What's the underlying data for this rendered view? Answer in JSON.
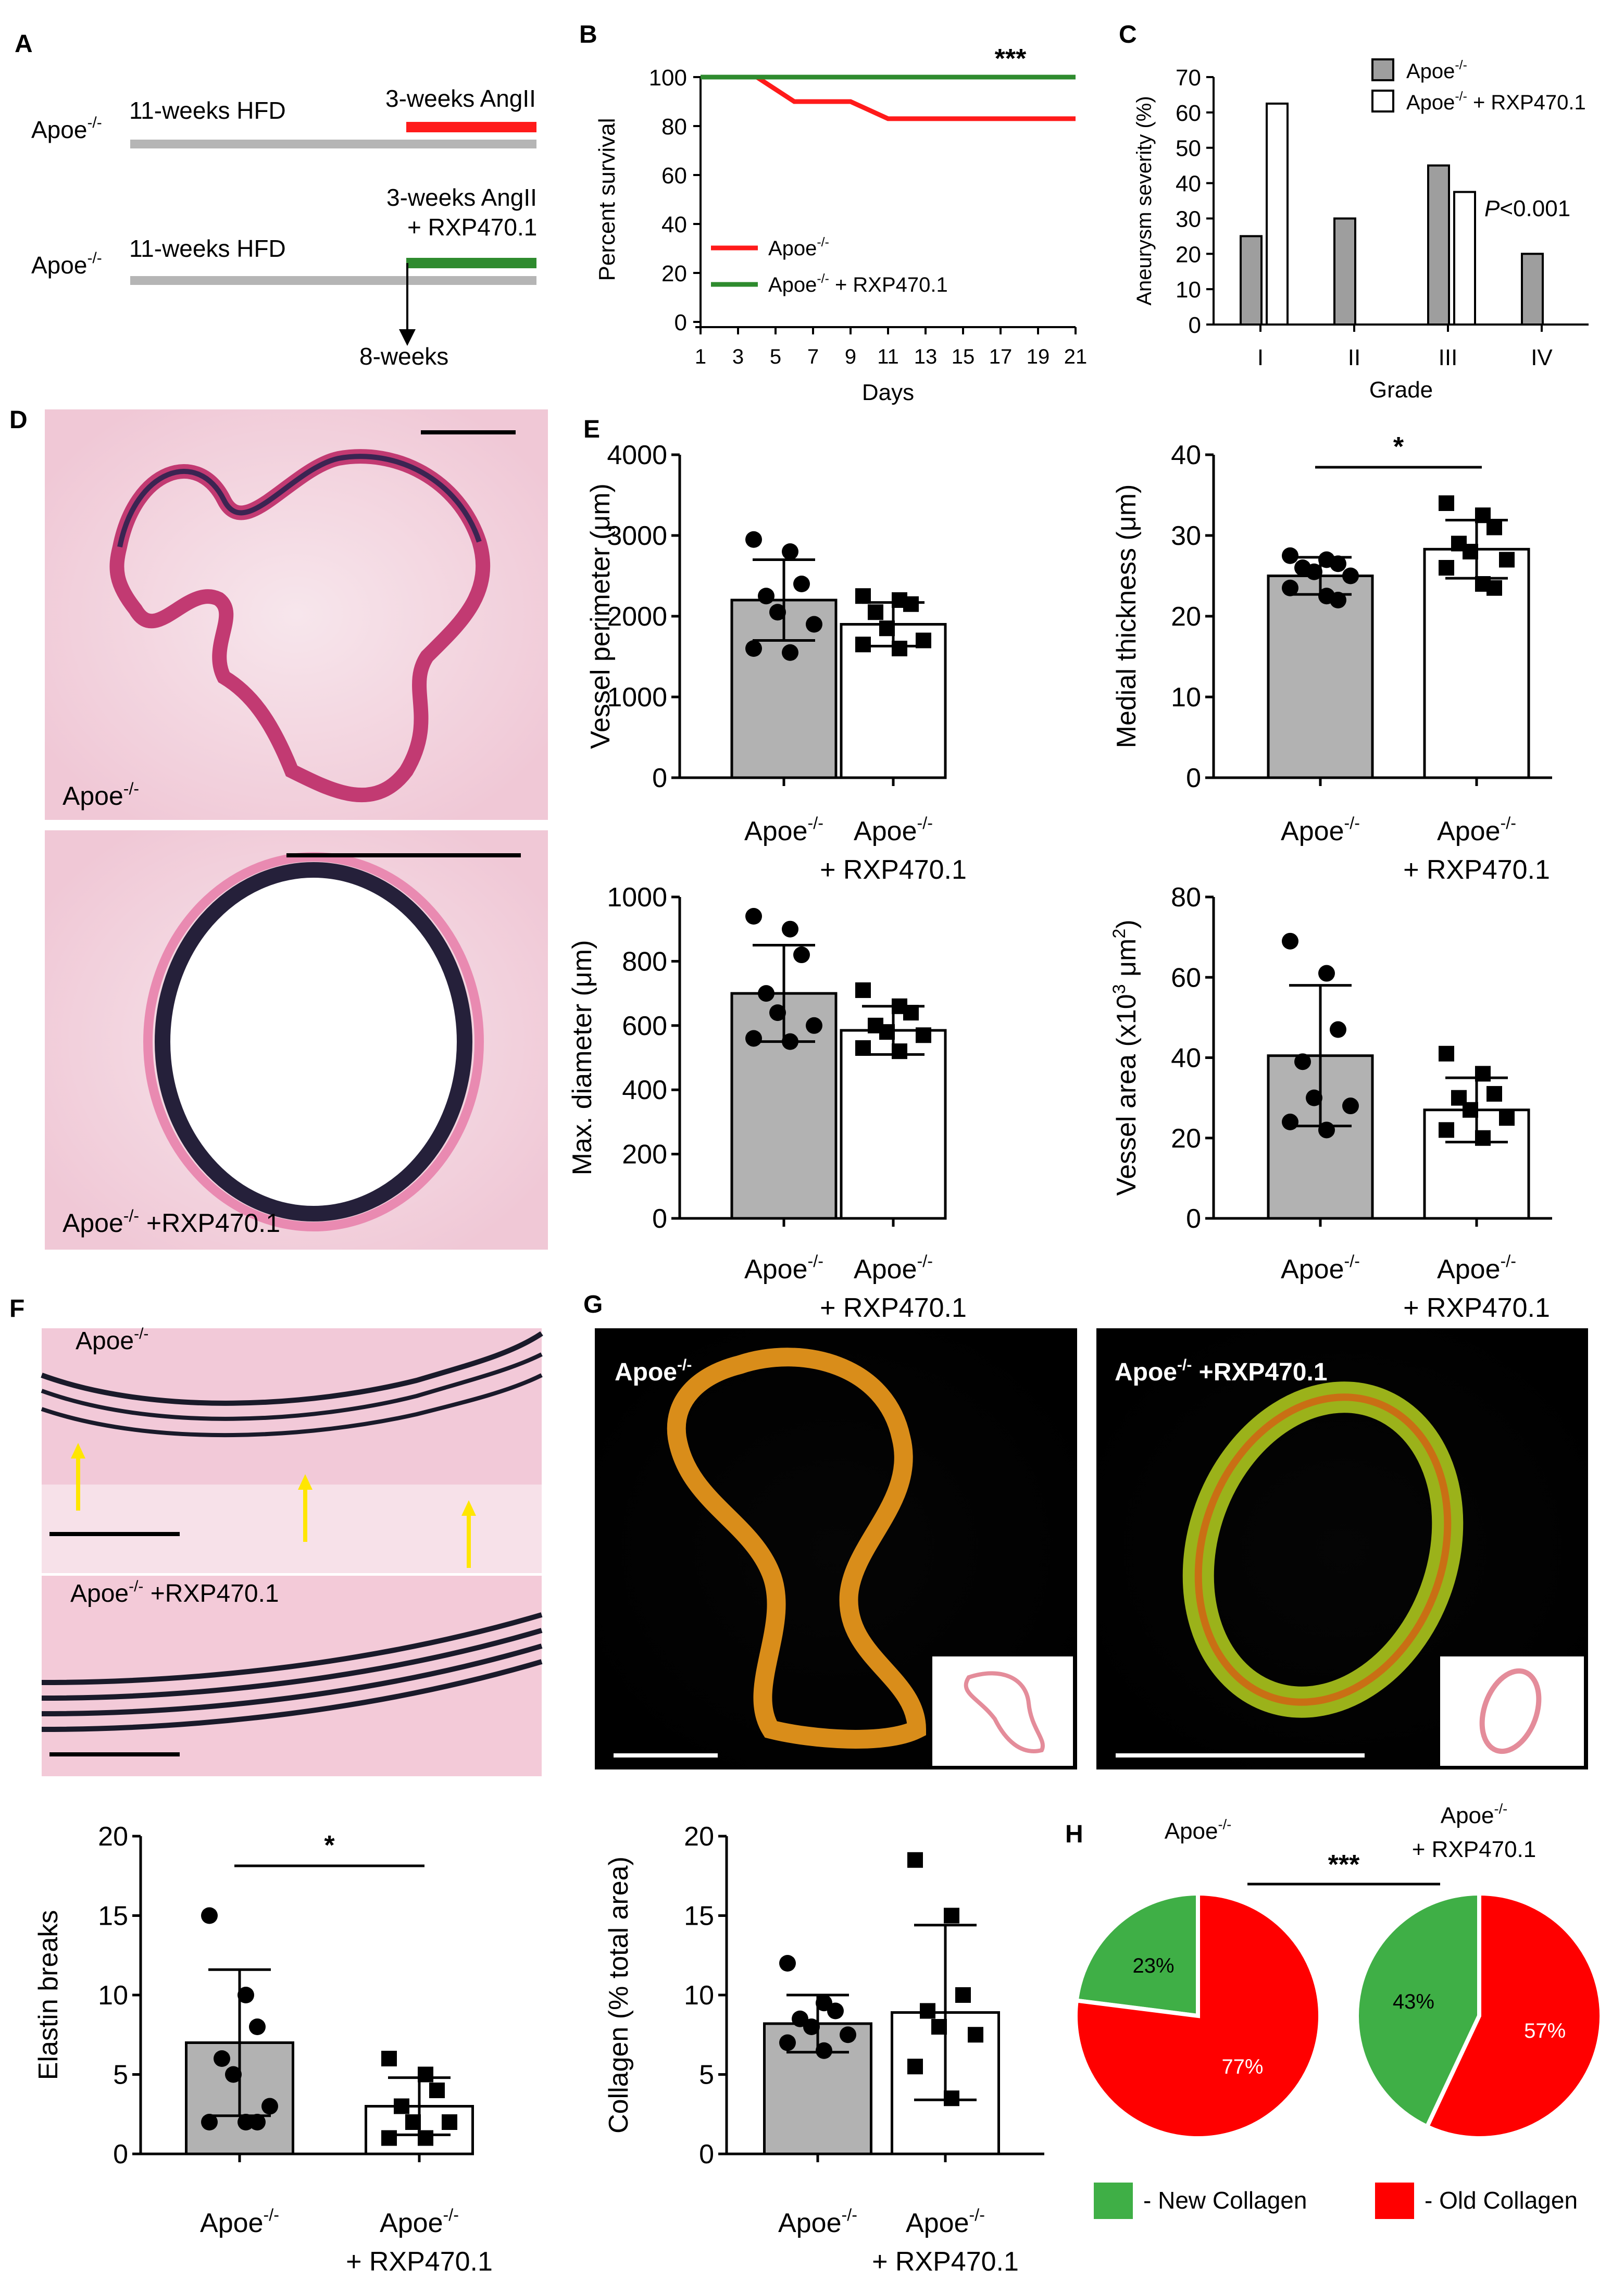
{
  "panel_letters": {
    "A": "A",
    "B": "B",
    "C": "C",
    "D": "D",
    "E": "E",
    "F": "F",
    "G": "G",
    "H": "H"
  },
  "colors": {
    "apoe": "#b2b2b2",
    "apoe_line": "#ff1a1a",
    "rxp_line": "#2e8b2e",
    "hfd": "#b5b5b5",
    "new_collagen": "#3faf46",
    "old_collagen": "#ff0000",
    "bar_edge": "#000000"
  },
  "panelA": {
    "row1": {
      "strain": "Apoe",
      "sup": "-/-",
      "hfd": "11-weeks HFD",
      "ang": "3-weeks AngII"
    },
    "row2": {
      "strain": "Apoe",
      "sup": "-/-",
      "hfd": "11-weeks HFD",
      "ang1": "3-weeks AngII",
      "ang2": "+ RXP470.1",
      "time": "8-weeks"
    }
  },
  "histology": {
    "D_top": "Apoe",
    "D_top_sup": "-/-",
    "D_bottom": "Apoe",
    "D_bottom_sup": "-/-",
    "D_bottom_suffix": " +RXP470.1",
    "F_top": "Apoe",
    "F_top_sup": "-/-",
    "F_bottom": "Apoe",
    "F_bottom_sup": "-/-",
    "F_bottom_suffix": " +RXP470.1",
    "G_left": "Apoe",
    "G_left_sup": "-/-",
    "G_right": "Apoe",
    "G_right_sup": "-/-",
    "G_right_suffix": " +RXP470.1"
  },
  "group_labels": {
    "apoe": "Apoe",
    "sup": "-/-",
    "rxp": "+ RXP470.1"
  },
  "chart_data": [
    {
      "id": "B",
      "type": "line",
      "xlabel": "Days",
      "ylabel": "Percent survival",
      "xticks": [
        1,
        3,
        5,
        7,
        9,
        11,
        13,
        15,
        17,
        19,
        21
      ],
      "yticks": [
        0,
        20,
        40,
        60,
        80,
        100
      ],
      "ylim": [
        0,
        100
      ],
      "xlim": [
        1,
        21
      ],
      "annotation": "***",
      "series": [
        {
          "name": "Apoe-/-",
          "label": "Apoe",
          "sup": "-/-",
          "suffix": "",
          "color": "#ff1a1a",
          "x": [
            1,
            4,
            6,
            8,
            9,
            11,
            21
          ],
          "y": [
            100,
            100,
            90,
            90,
            90,
            83,
            83
          ]
        },
        {
          "name": "Apoe-/- + RXP470.1",
          "label": "Apoe",
          "sup": "-/-",
          "suffix": " + RXP470.1",
          "color": "#2e8b2e",
          "x": [
            1,
            21
          ],
          "y": [
            100,
            100
          ]
        }
      ]
    },
    {
      "id": "C",
      "type": "bar",
      "xlabel": "Grade",
      "ylabel": "Aneurysm severity (%)",
      "categories": [
        "I",
        "II",
        "III",
        "IV"
      ],
      "yticks": [
        0,
        10,
        20,
        30,
        40,
        50,
        60,
        70
      ],
      "ylim": [
        0,
        70
      ],
      "annotation": "P<0.001",
      "series": [
        {
          "name": "Apoe-/-",
          "label": "Apoe",
          "sup": "-/-",
          "suffix": "",
          "color": "#9e9e9e",
          "values": [
            25,
            30,
            45,
            20
          ]
        },
        {
          "name": "Apoe-/- + RXP470.1",
          "label": "Apoe",
          "sup": "-/-",
          "suffix": " + RXP470.1",
          "color": "#ffffff",
          "values": [
            62.5,
            0,
            37.5,
            0
          ]
        }
      ]
    },
    {
      "id": "E1",
      "type": "bar",
      "ylabel": "Vessel perimeter (μm)",
      "yticks": [
        0,
        1000,
        2000,
        3000,
        4000
      ],
      "ylim": [
        0,
        4000
      ],
      "means": [
        2200,
        1900
      ],
      "sd": [
        500,
        270
      ],
      "points": [
        [
          2950,
          2800,
          2400,
          2250,
          2050,
          1900,
          1600,
          1550
        ],
        [
          2250,
          2200,
          2150,
          2050,
          1850,
          1700,
          1650,
          1600
        ]
      ]
    },
    {
      "id": "E2",
      "type": "bar",
      "ylabel": "Medial thickness (μm)",
      "yticks": [
        0,
        10,
        20,
        30,
        40
      ],
      "ylim": [
        0,
        40
      ],
      "annotation": "*",
      "means": [
        25,
        28.3
      ],
      "sd": [
        2.3,
        3.6
      ],
      "points": [
        [
          27.5,
          27,
          26.5,
          26,
          25.5,
          25,
          23.5,
          22.5,
          22
        ],
        [
          34,
          32.5,
          31,
          29,
          28,
          27,
          26,
          24,
          23.5
        ]
      ]
    },
    {
      "id": "E3",
      "type": "bar",
      "ylabel": "Max. diameter (μm)",
      "yticks": [
        0,
        200,
        400,
        600,
        800,
        1000
      ],
      "ylim": [
        0,
        1000
      ],
      "means": [
        700,
        585
      ],
      "sd": [
        150,
        75
      ],
      "points": [
        [
          940,
          900,
          820,
          700,
          640,
          600,
          560,
          550
        ],
        [
          710,
          660,
          640,
          600,
          580,
          570,
          530,
          520
        ]
      ]
    },
    {
      "id": "E4",
      "type": "bar",
      "ylabel": "Vessel area (x10",
      "ylabel_sup": "3",
      "ylabel_end": " μm",
      "ylabel_sup2": "2",
      "ylabel_close": ")",
      "yticks": [
        0,
        20,
        40,
        60,
        80
      ],
      "ylim": [
        0,
        80
      ],
      "means": [
        40.5,
        27
      ],
      "sd": [
        17.5,
        8
      ],
      "points": [
        [
          69,
          61,
          47,
          39,
          30,
          28,
          24,
          22
        ],
        [
          41,
          36,
          31,
          30,
          27,
          25,
          22,
          20
        ]
      ]
    },
    {
      "id": "F",
      "type": "bar",
      "ylabel": "Elastin breaks",
      "yticks": [
        0,
        5,
        10,
        15,
        20
      ],
      "ylim": [
        0,
        20
      ],
      "annotation": "*",
      "means": [
        7,
        3
      ],
      "sd": [
        4.6,
        1.8
      ],
      "points": [
        [
          15,
          10,
          8,
          6,
          5,
          3,
          2,
          2,
          2
        ],
        [
          6,
          5,
          4,
          3,
          2,
          2,
          1,
          1
        ]
      ]
    },
    {
      "id": "G",
      "type": "bar",
      "ylabel": "Collagen (% total area)",
      "yticks": [
        0,
        5,
        10,
        15,
        20
      ],
      "ylim": [
        0,
        20
      ],
      "means": [
        8.2,
        8.9
      ],
      "sd": [
        1.8,
        5.5
      ],
      "points": [
        [
          12,
          9.5,
          9,
          8.5,
          8,
          7.5,
          7,
          6.5
        ],
        [
          18.5,
          15,
          10,
          9,
          8,
          7.5,
          5.5,
          3.5
        ]
      ]
    },
    {
      "id": "H",
      "type": "pie",
      "annotation": "***",
      "pies": [
        {
          "title": "Apoe",
          "sup": "-/-",
          "title2": "",
          "slices": [
            {
              "label": "New Collagen",
              "value": 23,
              "text": "23%"
            },
            {
              "label": "Old Collagen",
              "value": 77,
              "text": "77%"
            }
          ]
        },
        {
          "title": "Apoe",
          "sup": "-/-",
          "title2": "+ RXP470.1",
          "slices": [
            {
              "label": "New Collagen",
              "value": 43,
              "text": "43%"
            },
            {
              "label": "Old Collagen",
              "value": 57,
              "text": "57%"
            }
          ]
        }
      ],
      "legend": [
        {
          "label": "- New Collagen",
          "color": "#3faf46"
        },
        {
          "label": "- Old Collagen",
          "color": "#ff0000"
        }
      ]
    }
  ]
}
